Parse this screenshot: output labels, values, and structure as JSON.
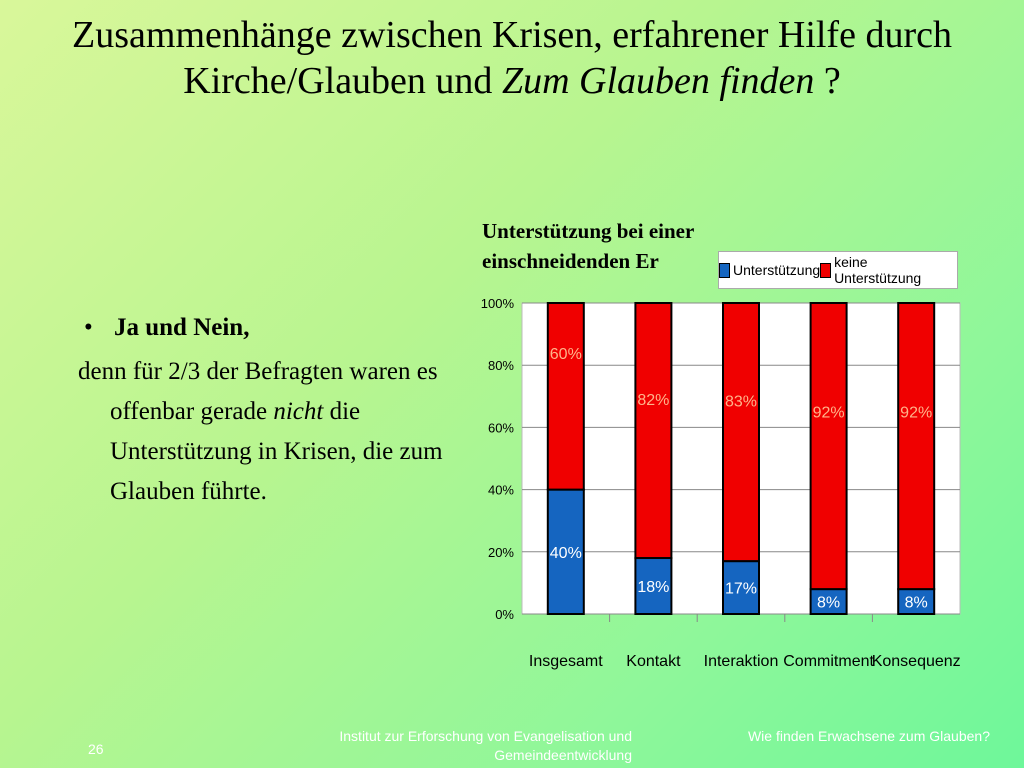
{
  "slide": {
    "title_part1": "Zusammenhänge zwischen Krisen, erfahrener Hilfe durch Kirche/Glauben und ",
    "title_italic": "Zum Glauben finden",
    "title_end": " ?"
  },
  "bullet": {
    "symbol": "•",
    "heading": "Ja und Nein,",
    "text_before": "denn für 2/3 der Befragten waren es offenbar gerade ",
    "text_italic": "nicht",
    "text_after": " die Unterstützung in Krisen, die zum Glauben führte."
  },
  "chart_data": {
    "type": "bar",
    "stacked": true,
    "title": "Unterstützung bei einer einschneidenden Er",
    "categories": [
      "Insgesamt",
      "Kontakt",
      "Interaktion",
      "Commitment",
      "Konsequenz"
    ],
    "series": [
      {
        "name": "Unterstützung",
        "values": [
          40,
          18,
          17,
          8,
          8
        ],
        "labels": [
          "40%",
          "18%",
          "17%",
          "8%",
          "8%"
        ],
        "color": "#1565c0"
      },
      {
        "name": "keine Unterstützung",
        "values": [
          60,
          82,
          83,
          92,
          92
        ],
        "labels": [
          "60%",
          "82%",
          "83%",
          "92%",
          "92%"
        ],
        "color": "#f00000"
      }
    ],
    "ylim": [
      0,
      100
    ],
    "yticks": [
      "0%",
      "20%",
      "40%",
      "60%",
      "80%",
      "100%"
    ],
    "grid": true,
    "legend_position": "top-right",
    "label_color": "#ffb38a"
  },
  "footer": {
    "page_number": "26",
    "center": "Institut zur Erforschung von Evangelisation und Gemeindeentwicklung",
    "right": "Wie finden Erwachsene zum Glauben?"
  }
}
